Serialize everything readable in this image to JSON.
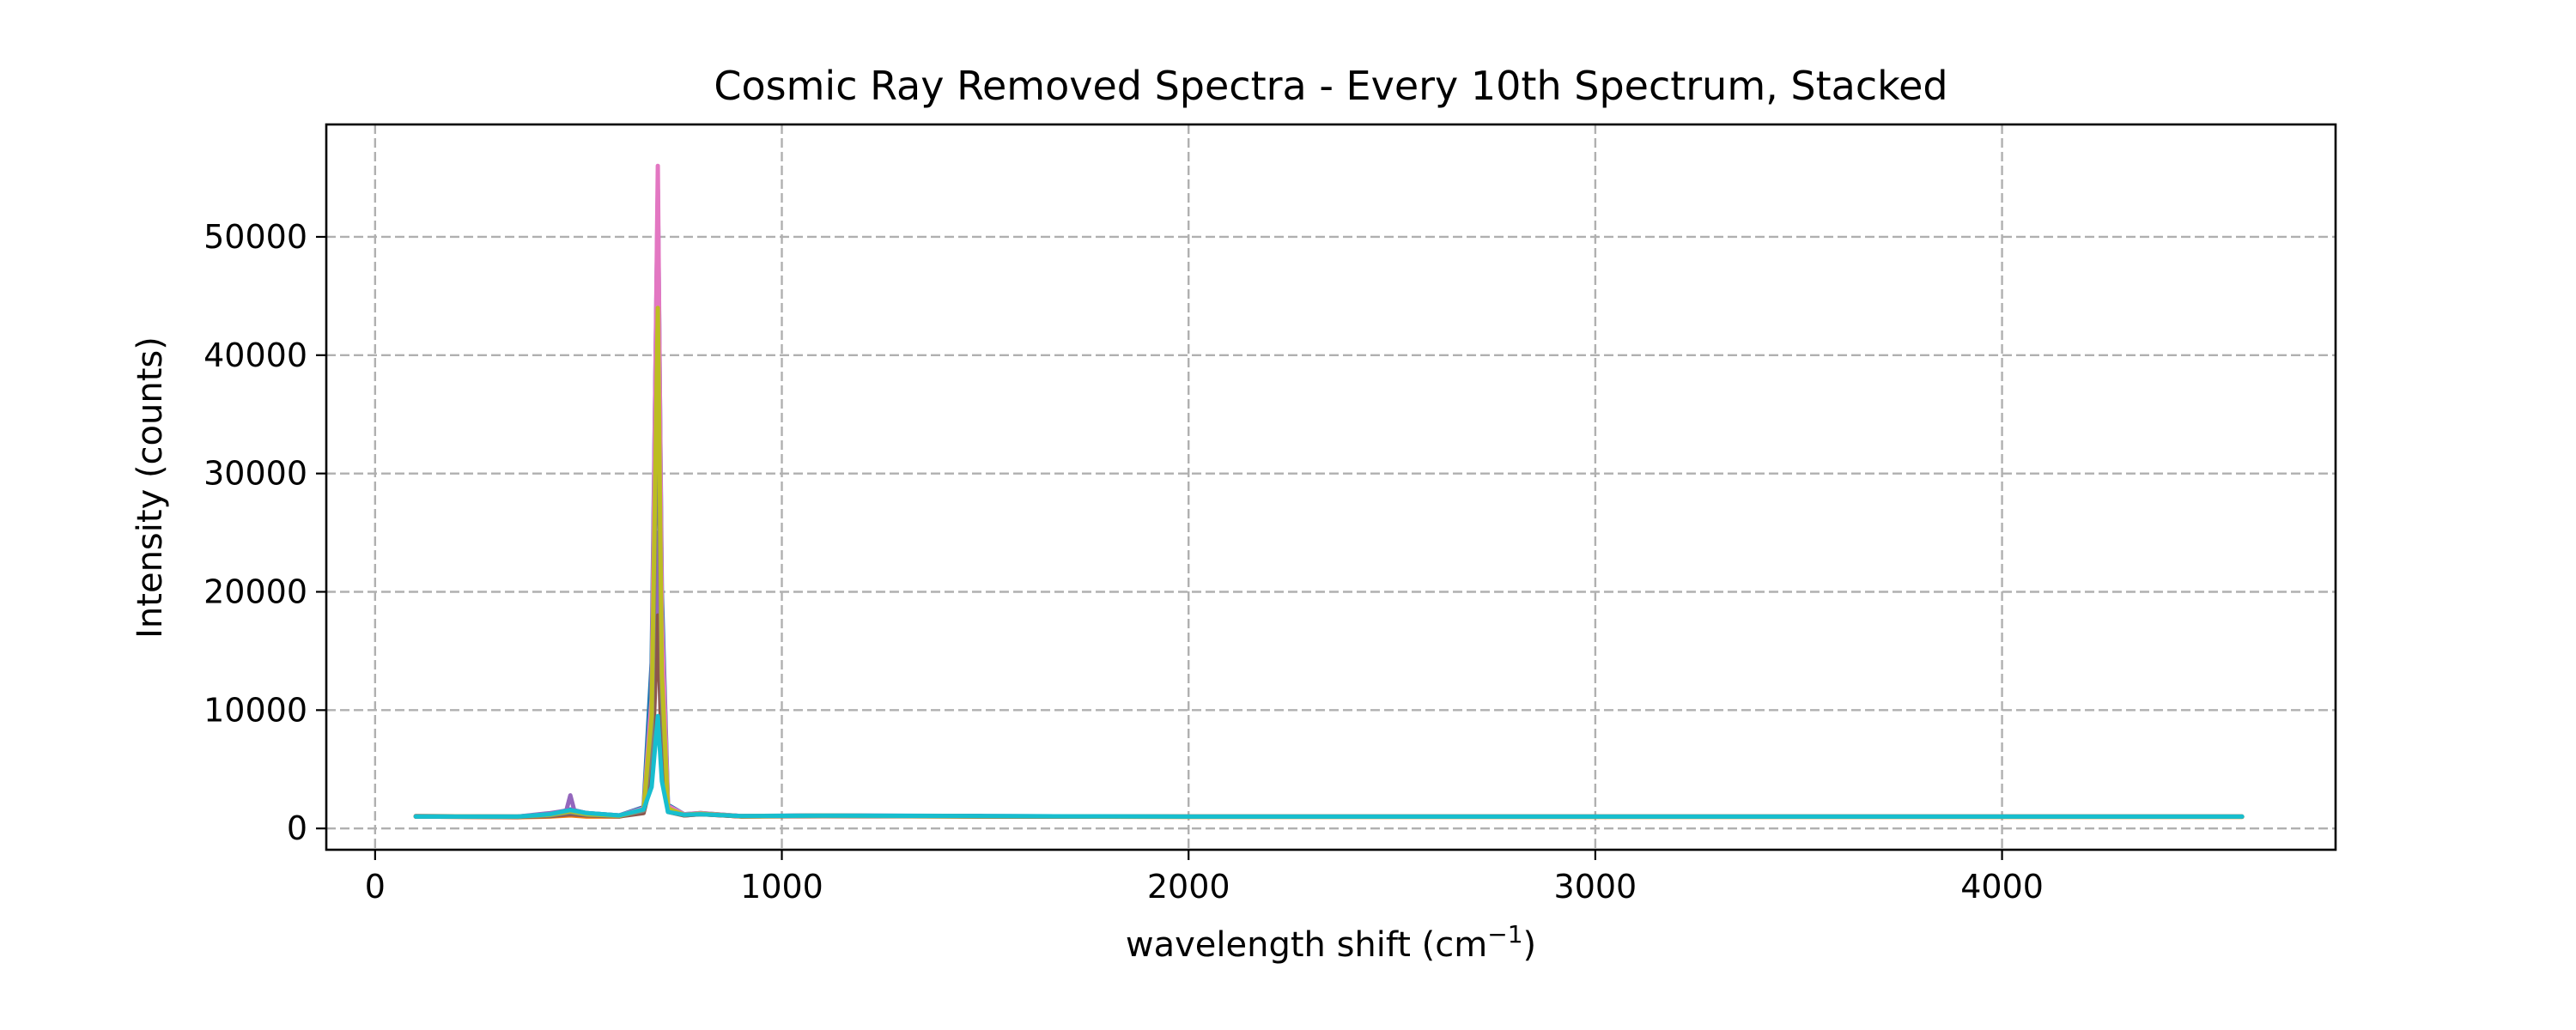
{
  "chart_data": {
    "type": "line",
    "title": "Cosmic Ray Removed Spectra - Every 10th Spectrum, Stacked",
    "xlabel": "wavelength shift (cm",
    "xlabel_superscript": "−1",
    "xlabel_suffix": ")",
    "ylabel": "Intensity (counts)",
    "xlim": [
      -120,
      4820
    ],
    "ylim": [
      -1800,
      59500
    ],
    "xticks": [
      0,
      1000,
      2000,
      3000,
      4000
    ],
    "xtick_labels": [
      "0",
      "1000",
      "2000",
      "3000",
      "4000"
    ],
    "yticks": [
      0,
      10000,
      20000,
      30000,
      40000,
      50000
    ],
    "ytick_labels": [
      "0",
      "10000",
      "20000",
      "30000",
      "40000",
      "50000"
    ],
    "grid": true,
    "legend": "none",
    "series": [
      {
        "color": "#1f77b4",
        "x": [
          100,
          350,
          430,
          480,
          520,
          600,
          660,
          680,
          695,
          705,
          720,
          760,
          800,
          900,
          1100,
          1500,
          2000,
          3000,
          4000,
          4590
        ],
        "y": [
          1050,
          1000,
          1200,
          1600,
          1300,
          1100,
          1800,
          14000,
          54000,
          20000,
          2000,
          1200,
          1300,
          1050,
          1100,
          1050,
          1000,
          1000,
          1000,
          1000
        ]
      },
      {
        "color": "#ff7f0e",
        "x": [
          100,
          350,
          430,
          480,
          520,
          600,
          660,
          680,
          695,
          705,
          720,
          760,
          800,
          900,
          1100,
          1500,
          2000,
          3000,
          4000,
          4590
        ],
        "y": [
          1000,
          950,
          1000,
          1100,
          1000,
          1000,
          1500,
          10000,
          52000,
          15000,
          1800,
          1150,
          1250,
          1000,
          1050,
          1000,
          980,
          980,
          980,
          980
        ]
      },
      {
        "color": "#2ca02c",
        "x": [
          100,
          350,
          430,
          480,
          520,
          600,
          660,
          680,
          695,
          705,
          720,
          760,
          800,
          900,
          1100,
          1500,
          2000,
          3000,
          4000,
          4590
        ],
        "y": [
          1020,
          1000,
          1150,
          1400,
          1200,
          1080,
          1600,
          9000,
          49000,
          14000,
          1700,
          1150,
          1250,
          1050,
          1080,
          1030,
          1000,
          1000,
          1000,
          1000
        ]
      },
      {
        "color": "#d62728",
        "x": [
          100,
          350,
          430,
          480,
          520,
          600,
          660,
          680,
          695,
          705,
          720,
          760,
          800,
          900,
          1100,
          1500,
          2000,
          3000,
          4000,
          4590
        ],
        "y": [
          1000,
          980,
          1100,
          1300,
          1150,
          1050,
          1400,
          5000,
          24000,
          8000,
          1500,
          1100,
          1200,
          1020,
          1060,
          1020,
          1000,
          1000,
          1000,
          1000
        ]
      },
      {
        "color": "#9467bd",
        "x": [
          100,
          350,
          430,
          470,
          480,
          490,
          520,
          600,
          660,
          680,
          695,
          705,
          720,
          760,
          800,
          900,
          1100,
          1500,
          2000,
          3000,
          4000,
          4590
        ],
        "y": [
          1050,
          1000,
          1300,
          1500,
          2800,
          1500,
          1300,
          1100,
          1700,
          8000,
          25000,
          9000,
          1600,
          1150,
          1250,
          1050,
          1080,
          1030,
          1000,
          1000,
          1000,
          1000
        ]
      },
      {
        "color": "#8c564b",
        "x": [
          100,
          350,
          430,
          480,
          520,
          600,
          660,
          680,
          695,
          705,
          720,
          760,
          800,
          900,
          1100,
          1500,
          2000,
          3000,
          4000,
          4590
        ],
        "y": [
          1000,
          980,
          1050,
          1200,
          1100,
          1020,
          1300,
          4000,
          18000,
          6000,
          1400,
          1100,
          1200,
          1020,
          1050,
          1010,
          990,
          990,
          990,
          990
        ]
      },
      {
        "color": "#e377c2",
        "x": [
          100,
          350,
          430,
          480,
          520,
          600,
          660,
          680,
          695,
          705,
          720,
          760,
          800,
          900,
          1100,
          1500,
          2000,
          3000,
          4000,
          4590
        ],
        "y": [
          1030,
          1000,
          1200,
          1500,
          1250,
          1080,
          1700,
          11000,
          56000,
          18000,
          1900,
          1200,
          1300,
          1050,
          1090,
          1040,
          1000,
          1000,
          1000,
          1000
        ]
      },
      {
        "color": "#7f7f7f",
        "x": [
          100,
          350,
          430,
          480,
          520,
          600,
          660,
          680,
          695,
          705,
          720,
          760,
          800,
          900,
          1100,
          1500,
          2000,
          3000,
          4000,
          4590
        ],
        "y": [
          1010,
          990,
          1100,
          1350,
          1150,
          1050,
          1500,
          7000,
          38000,
          11000,
          1600,
          1150,
          1250,
          1030,
          1070,
          1020,
          1000,
          1000,
          1000,
          1000
        ]
      },
      {
        "color": "#bcbd22",
        "x": [
          100,
          350,
          430,
          480,
          520,
          600,
          660,
          680,
          695,
          705,
          720,
          760,
          800,
          900,
          1100,
          1500,
          2000,
          3000,
          4000,
          4590
        ],
        "y": [
          1020,
          1000,
          1150,
          1450,
          1200,
          1070,
          1600,
          9500,
          44000,
          13000,
          1700,
          1150,
          1250,
          1040,
          1080,
          1030,
          1000,
          1000,
          1000,
          1000
        ]
      },
      {
        "color": "#17becf",
        "x": [
          100,
          350,
          430,
          480,
          520,
          600,
          660,
          680,
          695,
          705,
          720,
          760,
          800,
          900,
          1100,
          1500,
          2000,
          3000,
          4000,
          4590
        ],
        "y": [
          1000,
          1000,
          1200,
          1550,
          1300,
          1100,
          1600,
          3500,
          9500,
          4000,
          1400,
          1150,
          1200,
          1050,
          1080,
          1050,
          1000,
          1000,
          1000,
          1000
        ]
      }
    ]
  }
}
